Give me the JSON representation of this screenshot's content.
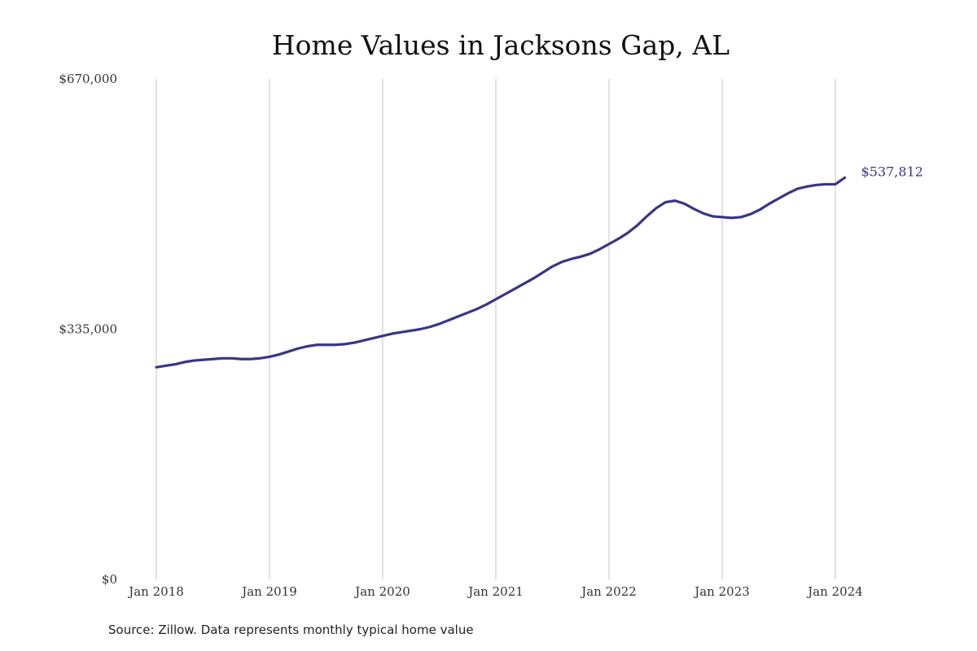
{
  "chart_data": {
    "type": "line",
    "title": "Home Values in Jacksons Gap, AL",
    "source": "Source: Zillow. Data represents monthly typical home value",
    "ylim": [
      0,
      670000
    ],
    "y_ticks": [
      {
        "value": 0,
        "label": "$0"
      },
      {
        "value": 335000,
        "label": "$335,000"
      },
      {
        "value": 670000,
        "label": "$670,000"
      }
    ],
    "x_ticks": [
      "Jan 2018",
      "Jan 2019",
      "Jan 2020",
      "Jan 2021",
      "Jan 2022",
      "Jan 2023",
      "Jan 2024"
    ],
    "grid": "vertical",
    "line_color": "#3a3585",
    "end_label": "$537,812",
    "series": [
      {
        "x": [
          "2018-01",
          "2018-02",
          "2018-03",
          "2018-04",
          "2018-05",
          "2018-06",
          "2018-07",
          "2018-08",
          "2018-09",
          "2018-10",
          "2018-11",
          "2018-12",
          "2019-01",
          "2019-02",
          "2019-03",
          "2019-04",
          "2019-05",
          "2019-06",
          "2019-07",
          "2019-08",
          "2019-09",
          "2019-10",
          "2019-11",
          "2019-12",
          "2020-01",
          "2020-02",
          "2020-03",
          "2020-04",
          "2020-05",
          "2020-06",
          "2020-07",
          "2020-08",
          "2020-09",
          "2020-10",
          "2020-11",
          "2020-12",
          "2021-01",
          "2021-02",
          "2021-03",
          "2021-04",
          "2021-05",
          "2021-06",
          "2021-07",
          "2021-08",
          "2021-09",
          "2021-10",
          "2021-11",
          "2021-12",
          "2022-01",
          "2022-02",
          "2022-03",
          "2022-04",
          "2022-05",
          "2022-06",
          "2022-07",
          "2022-08",
          "2022-09",
          "2022-10",
          "2022-11",
          "2022-12",
          "2023-01",
          "2023-02",
          "2023-03",
          "2023-04",
          "2023-05",
          "2023-06",
          "2023-07",
          "2023-08",
          "2023-09",
          "2023-10",
          "2023-11",
          "2023-12",
          "2024-01",
          "2024-02"
        ],
        "values": [
          284000,
          286000,
          288000,
          291000,
          293000,
          294000,
          295000,
          296000,
          296000,
          295000,
          295000,
          296000,
          298000,
          301000,
          305000,
          309000,
          312000,
          314000,
          314000,
          314000,
          315000,
          317000,
          320000,
          323000,
          326000,
          329000,
          331000,
          333000,
          335000,
          338000,
          342000,
          347000,
          352000,
          357000,
          362000,
          368000,
          375000,
          382000,
          389000,
          396000,
          403000,
          411000,
          419000,
          425000,
          429000,
          432000,
          436000,
          442000,
          449000,
          456000,
          464000,
          474000,
          486000,
          497000,
          505000,
          507000,
          503000,
          496000,
          490000,
          486000,
          485000,
          484000,
          485000,
          489000,
          495000,
          503000,
          510000,
          517000,
          523000,
          526000,
          528000,
          529000,
          529000,
          537812
        ]
      }
    ]
  }
}
